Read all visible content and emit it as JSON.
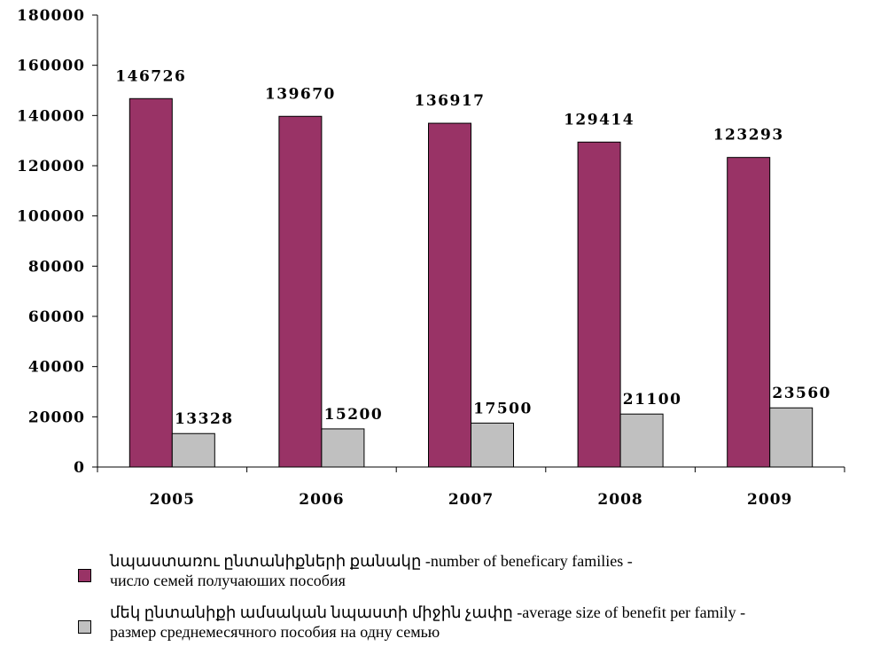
{
  "chart_data": {
    "type": "bar",
    "categories": [
      "2005",
      "2006",
      "2007",
      "2008",
      "2009"
    ],
    "series": [
      {
        "name": "նպաստառու ընտանիքների քանակը -number of beneficary families - число семей получаюших пособия",
        "values": [
          146726,
          139670,
          136917,
          129414,
          123293
        ],
        "color": "#993366"
      },
      {
        "name": "մեկ ընտանիքի ամսական նպաստի միջին չափը -average size of  benefit per family - размер среднемесячного пособия на одну семью",
        "values": [
          13328,
          15200,
          17500,
          21100,
          23560
        ],
        "color": "#c0c0c0"
      }
    ],
    "ylim": [
      0,
      180000
    ],
    "yticks": [
      "0",
      "20000",
      "40000",
      "60000",
      "80000",
      "100000",
      "120000",
      "140000",
      "160000",
      "180000"
    ],
    "data_labels": [
      [
        "146726",
        "139670",
        "136917",
        "129414",
        "123293"
      ],
      [
        "13328",
        "15200",
        "17500",
        "21100",
        "23560"
      ]
    ],
    "grid": false,
    "legend_position": "bottom"
  },
  "legend": {
    "items": [
      {
        "line1": "նպաստառու ընտանիքների քանակը -number of beneficary families -",
        "line2": "число семей получаюших пособия",
        "color": "#993366"
      },
      {
        "line1": "մեկ ընտանիքի ամսական նպաստի միջին չափը -average size of  benefit per family -",
        "line2": "размер среднемесячного пособия на одну семью",
        "color": "#c0c0c0"
      }
    ]
  }
}
